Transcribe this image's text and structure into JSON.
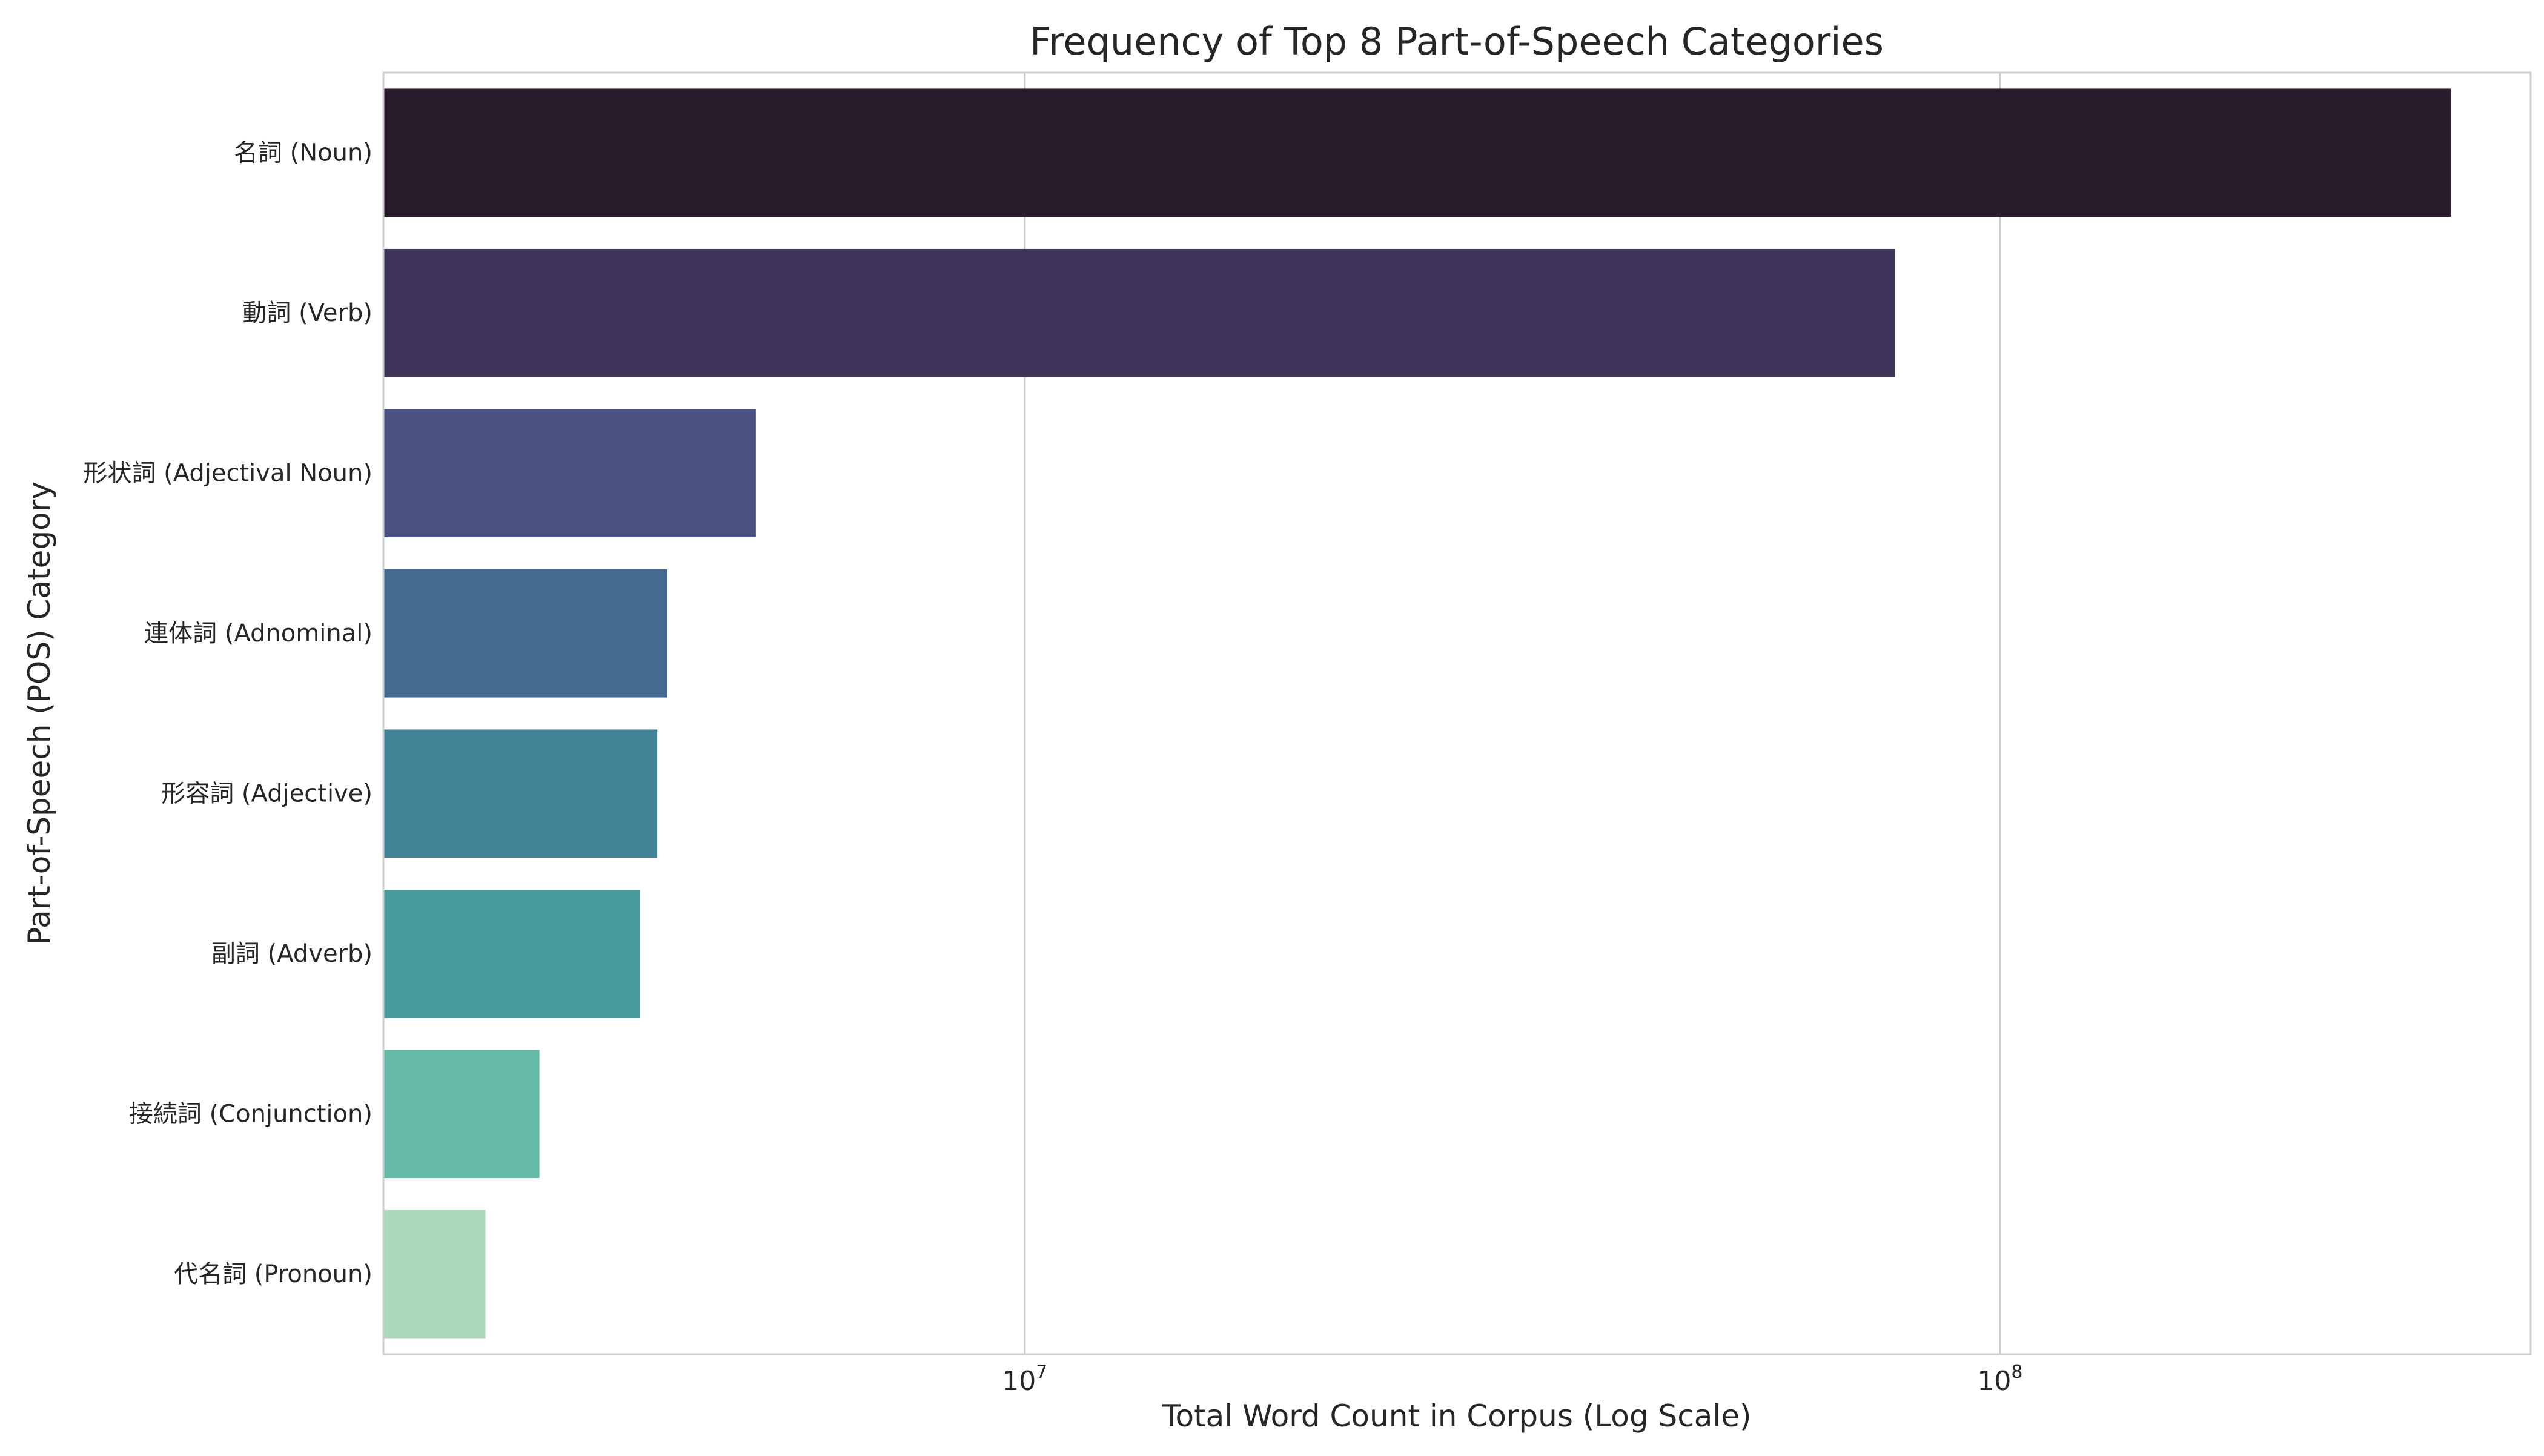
{
  "chart_data": {
    "type": "bar",
    "orientation": "horizontal",
    "title": "Frequency of Top 8 Part-of-Speech Categories",
    "xlabel": "Total Word Count in Corpus (Log Scale)",
    "ylabel": "Part-of-Speech (POS) Category",
    "xscale": "log",
    "xlim": [
      2200000,
      350000000
    ],
    "xticks": [
      {
        "value": 10000000,
        "base": "10",
        "exp": "7"
      },
      {
        "value": 100000000,
        "base": "10",
        "exp": "8"
      }
    ],
    "grid": "vertical",
    "legend": "none",
    "categories": [
      "名詞 (Noun)",
      "動詞 (Verb)",
      "形状詞 (Adjectival Noun)",
      "連体詞 (Adnominal)",
      "形容詞 (Adjective)",
      "副詞 (Adverb)",
      "接続詞 (Conjunction)",
      "代名詞 (Pronoun)"
    ],
    "values": [
      290000000,
      78000000,
      5300000,
      4300000,
      4200000,
      4030000,
      3180000,
      2800000
    ],
    "colors": [
      "#271b2c",
      "#3e3358",
      "#4a5284",
      "#446a92",
      "#428297",
      "#499c9e",
      "#66bba6",
      "#abd8b8"
    ]
  }
}
